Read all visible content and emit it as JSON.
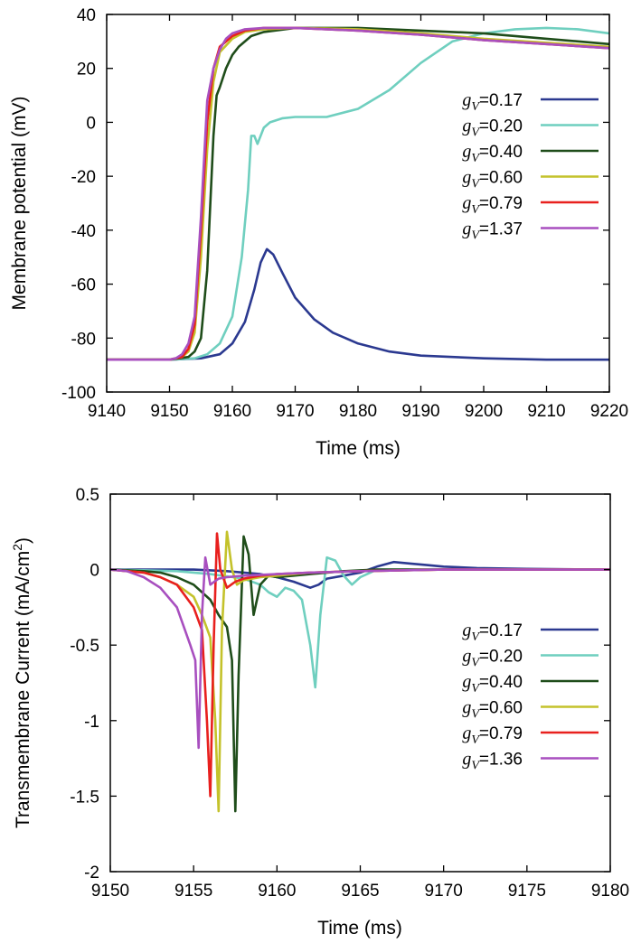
{
  "chart_data": [
    {
      "type": "line",
      "title": "",
      "xlabel": "Time (ms)",
      "ylabel": "Membrane potential (mV)",
      "xlim": [
        9140,
        9220
      ],
      "ylim": [
        -100,
        40
      ],
      "xticks": [
        "9140",
        "9150",
        "9160",
        "9170",
        "9180",
        "9190",
        "9200",
        "9210",
        "9220"
      ],
      "yticks": [
        "40",
        "20",
        "0",
        "-20",
        "-40",
        "-60",
        "-80",
        "-100"
      ],
      "legend_position": "right",
      "series": [
        {
          "name": "0.17",
          "label": "g_V=0.17",
          "color": "#2b3990",
          "x": [
            9140,
            9150,
            9155,
            9158,
            9160,
            9162,
            9163.5,
            9164.5,
            9165.5,
            9166.5,
            9168,
            9170,
            9173,
            9176,
            9180,
            9185,
            9190,
            9200,
            9210,
            9220
          ],
          "y": [
            -88,
            -88,
            -87.5,
            -86,
            -82,
            -74,
            -62,
            -52,
            -47,
            -49,
            -56,
            -65,
            -73,
            -78,
            -82,
            -85,
            -86.5,
            -87.5,
            -88,
            -88
          ]
        },
        {
          "name": "0.20",
          "label": "g_V=0.20",
          "color": "#6fcfbf",
          "x": [
            9140,
            9150,
            9154,
            9156,
            9158,
            9160,
            9161.5,
            9162.5,
            9163,
            9163.5,
            9164,
            9165,
            9166,
            9168,
            9170,
            9175,
            9180,
            9185,
            9190,
            9195,
            9200,
            9205,
            9210,
            9215,
            9220
          ],
          "y": [
            -88,
            -88,
            -87.5,
            -86,
            -82,
            -72,
            -50,
            -25,
            -5,
            -5,
            -8,
            -2,
            0,
            1.5,
            2,
            2,
            5,
            12,
            22,
            30,
            33,
            34.5,
            35,
            34.5,
            33
          ]
        },
        {
          "name": "0.40",
          "label": "g_V=0.40",
          "color": "#1f4d1a",
          "x": [
            9140,
            9150,
            9153,
            9154,
            9155,
            9156,
            9157,
            9157.5,
            9158,
            9159,
            9160,
            9161,
            9163,
            9165,
            9170,
            9180,
            9190,
            9200,
            9210,
            9220
          ],
          "y": [
            -88,
            -88,
            -87,
            -85,
            -80,
            -55,
            -5,
            10,
            13,
            20,
            25,
            28,
            32,
            33.5,
            35,
            35,
            34,
            33,
            31,
            29
          ]
        },
        {
          "name": "0.60",
          "label": "g_V=0.60",
          "color": "#c4c22b",
          "x": [
            9140,
            9150,
            9152,
            9153,
            9154,
            9155,
            9156,
            9157,
            9158,
            9160,
            9162,
            9165,
            9170,
            9180,
            9190,
            9200,
            9210,
            9220
          ],
          "y": [
            -88,
            -88,
            -87,
            -85,
            -78,
            -50,
            -10,
            15,
            26,
            31,
            33.5,
            34.5,
            35,
            34.5,
            33,
            31,
            29.5,
            28
          ]
        },
        {
          "name": "0.79",
          "label": "g_V=0.79",
          "color": "#e8201e",
          "x": [
            9140,
            9150,
            9152,
            9153,
            9154,
            9155,
            9156,
            9157,
            9158,
            9160,
            9162,
            9165,
            9170,
            9180,
            9190,
            9200,
            9210,
            9220
          ],
          "y": [
            -88,
            -88,
            -87,
            -84,
            -75,
            -40,
            0,
            20,
            28,
            32,
            34,
            35,
            35,
            34,
            32.5,
            30.5,
            29,
            27.5
          ]
        },
        {
          "name": "1.37",
          "label": "g_V=1.37",
          "color": "#a84fbf",
          "x": [
            9140,
            9150,
            9151,
            9152,
            9153,
            9154,
            9155,
            9156,
            9157,
            9158,
            9159,
            9160,
            9162,
            9165,
            9170,
            9180,
            9190,
            9200,
            9210,
            9220
          ],
          "y": [
            -88,
            -88,
            -87.5,
            -86,
            -82,
            -72,
            -35,
            8,
            20,
            27,
            31,
            33,
            34.5,
            35,
            35,
            34,
            32.5,
            30.5,
            29,
            27.5
          ]
        }
      ]
    },
    {
      "type": "line",
      "title": "",
      "xlabel": "Time (ms)",
      "ylabel": "Transmembrane Current (mA/cm",
      "ylabel_sup": "2",
      "ylabel_end": ")",
      "xlim": [
        9150,
        9180
      ],
      "ylim": [
        -2,
        0.5
      ],
      "xticks": [
        "9150",
        "9155",
        "9160",
        "9165",
        "9170",
        "9175",
        "9180"
      ],
      "yticks": [
        "0.5",
        "0",
        "-0.5",
        "-1",
        "-1.5",
        "-2"
      ],
      "legend_position": "bottom-right",
      "series": [
        {
          "name": "0.17",
          "label": "g_V=0.17",
          "color": "#2b3990",
          "x": [
            9150,
            9155,
            9157,
            9159,
            9160,
            9161,
            9162,
            9162.5,
            9163,
            9164,
            9165,
            9166,
            9167,
            9168,
            9169,
            9170,
            9172,
            9175,
            9180
          ],
          "y": [
            0,
            0,
            -0.01,
            -0.03,
            -0.05,
            -0.08,
            -0.12,
            -0.1,
            -0.06,
            -0.04,
            -0.02,
            0.02,
            0.05,
            0.04,
            0.03,
            0.02,
            0.01,
            0.005,
            0
          ]
        },
        {
          "name": "0.20",
          "label": "g_V=0.20",
          "color": "#6fcfbf",
          "x": [
            9150,
            9154,
            9156,
            9158,
            9159,
            9159.5,
            9160,
            9160.5,
            9161,
            9161.5,
            9162,
            9162.3,
            9162.6,
            9163,
            9163.5,
            9164,
            9164.5,
            9165,
            9166,
            9168,
            9170,
            9175,
            9180
          ],
          "y": [
            0,
            -0.01,
            -0.03,
            -0.06,
            -0.1,
            -0.15,
            -0.18,
            -0.12,
            -0.14,
            -0.2,
            -0.5,
            -0.78,
            -0.3,
            0.08,
            0.06,
            -0.04,
            -0.1,
            -0.05,
            0,
            0,
            0,
            0,
            0
          ]
        },
        {
          "name": "0.40",
          "label": "g_V=0.40",
          "color": "#1f4d1a",
          "x": [
            9150,
            9152,
            9153,
            9154,
            9155,
            9156,
            9156.5,
            9157,
            9157.3,
            9157.5,
            9157.7,
            9158,
            9158.3,
            9158.6,
            9159,
            9159.5,
            9160,
            9161,
            9162,
            9164,
            9166,
            9170,
            9180
          ],
          "y": [
            0,
            -0.01,
            -0.02,
            -0.05,
            -0.1,
            -0.2,
            -0.3,
            -0.38,
            -0.6,
            -1.6,
            -0.7,
            0.22,
            0.1,
            -0.3,
            -0.1,
            -0.04,
            -0.05,
            -0.04,
            -0.03,
            -0.01,
            0,
            0,
            0
          ]
        },
        {
          "name": "0.60",
          "label": "g_V=0.60",
          "color": "#c4c22b",
          "x": [
            9150,
            9152,
            9153,
            9154,
            9155,
            9155.5,
            9156,
            9156.3,
            9156.5,
            9156.7,
            9157,
            9157.3,
            9157.6,
            9158,
            9159,
            9160,
            9162,
            9165,
            9170,
            9180
          ],
          "y": [
            0,
            -0.02,
            -0.05,
            -0.1,
            -0.18,
            -0.3,
            -0.45,
            -1.0,
            -1.6,
            -0.4,
            0.25,
            0.0,
            -0.1,
            -0.07,
            -0.05,
            -0.04,
            -0.02,
            -0.01,
            0,
            0
          ]
        },
        {
          "name": "0.79",
          "label": "g_V=0.79",
          "color": "#e8201e",
          "x": [
            9150,
            9152,
            9153,
            9154,
            9155,
            9155.5,
            9155.8,
            9156,
            9156.2,
            9156.4,
            9156.6,
            9157,
            9157.5,
            9158,
            9159,
            9160,
            9162,
            9165,
            9170,
            9180
          ],
          "y": [
            0,
            -0.02,
            -0.05,
            -0.1,
            -0.25,
            -0.4,
            -1.0,
            -1.5,
            -0.5,
            0.24,
            0.0,
            -0.12,
            -0.08,
            -0.06,
            -0.04,
            -0.03,
            -0.02,
            -0.01,
            0,
            0
          ]
        },
        {
          "name": "1.36",
          "label": "g_V=1.36",
          "color": "#a84fbf",
          "x": [
            9150,
            9151,
            9152,
            9153,
            9154,
            9154.8,
            9155.1,
            9155.3,
            9155.5,
            9155.7,
            9156,
            9156.5,
            9157,
            9158,
            9160,
            9162,
            9165,
            9170,
            9180
          ],
          "y": [
            0,
            -0.01,
            -0.05,
            -0.12,
            -0.25,
            -0.5,
            -0.6,
            -1.18,
            -0.3,
            0.08,
            -0.1,
            -0.06,
            -0.05,
            -0.04,
            -0.03,
            -0.02,
            -0.01,
            0,
            0
          ]
        }
      ]
    }
  ]
}
